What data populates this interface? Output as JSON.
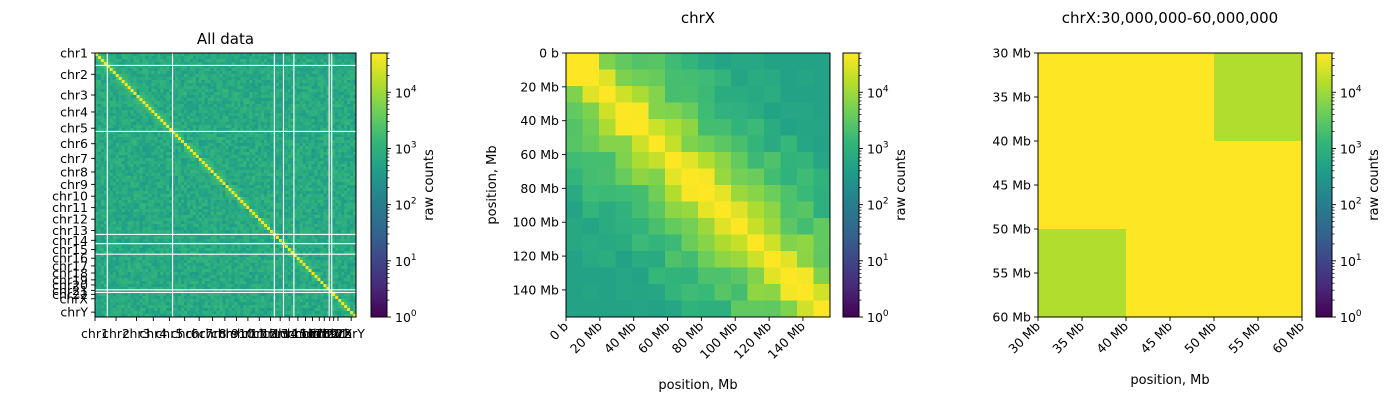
{
  "colormap": [
    "#440154",
    "#482878",
    "#3e4989",
    "#31688e",
    "#26828e",
    "#1f9e89",
    "#35b779",
    "#6ece58",
    "#b5de2b",
    "#fde725"
  ],
  "colorbar_label": "raw counts",
  "colorbar_ticks": [
    {
      "value": 1,
      "base": "10",
      "exp": "0"
    },
    {
      "value": 10,
      "base": "10",
      "exp": "1"
    },
    {
      "value": 100,
      "base": "10",
      "exp": "2"
    },
    {
      "value": 1000,
      "base": "10",
      "exp": "3"
    },
    {
      "value": 10000,
      "base": "10",
      "exp": "4"
    }
  ],
  "chart_data": [
    {
      "type": "heatmap",
      "title": "All data",
      "xlabel": "",
      "ylabel": "",
      "color_scale": "log",
      "vmin": 1,
      "vmax": 50000,
      "genome_ticks": {
        "labels": [
          "chr1",
          "chr2",
          "chr3",
          "chr4",
          "chr5",
          "chr6",
          "chr7",
          "chr8",
          "chr9",
          "chr10",
          "chr11",
          "chr12",
          "chr13",
          "chr14",
          "chr15",
          "chr16",
          "chr17",
          "chr18",
          "chr19",
          "chr20",
          "chr21",
          "chr22",
          "chrX",
          "chrY"
        ],
        "lengths_mb": [
          249,
          242,
          198,
          190,
          181,
          171,
          159,
          145,
          138,
          134,
          135,
          133,
          114,
          107,
          102,
          90,
          83,
          80,
          59,
          64,
          47,
          51,
          156,
          57
        ]
      }
    },
    {
      "type": "heatmap",
      "title": "chrX",
      "xlabel": "position, Mb",
      "ylabel": "position, Mb",
      "color_scale": "log",
      "vmin": 1,
      "vmax": 50000,
      "xlim_mb": [
        0,
        156
      ],
      "ylim_mb": [
        0,
        156
      ],
      "tick_labels": [
        "0 b",
        "20 Mb",
        "40 Mb",
        "60 Mb",
        "80 Mb",
        "100 Mb",
        "120 Mb",
        "140 Mb"
      ],
      "tick_values_mb": [
        0,
        20,
        40,
        60,
        80,
        100,
        120,
        140
      ],
      "bin_size_mb": 10,
      "n_bins": 16
    },
    {
      "type": "heatmap",
      "title": "chrX:30,000,000-60,000,000",
      "xlabel": "position, Mb",
      "ylabel": "",
      "color_scale": "log",
      "vmin": 1,
      "vmax": 50000,
      "xlim_mb": [
        30,
        60
      ],
      "ylim_mb": [
        30,
        60
      ],
      "tick_labels": [
        "30 Mb",
        "35 Mb",
        "40 Mb",
        "45 Mb",
        "50 Mb",
        "55 Mb",
        "60 Mb"
      ],
      "tick_values_mb": [
        30,
        35,
        40,
        45,
        50,
        55,
        60
      ],
      "bin_edges_mb": [
        30,
        40,
        50,
        60
      ],
      "values": [
        [
          50000,
          50000,
          14000
        ],
        [
          50000,
          50000,
          50000
        ],
        [
          14000,
          50000,
          50000
        ]
      ]
    }
  ]
}
